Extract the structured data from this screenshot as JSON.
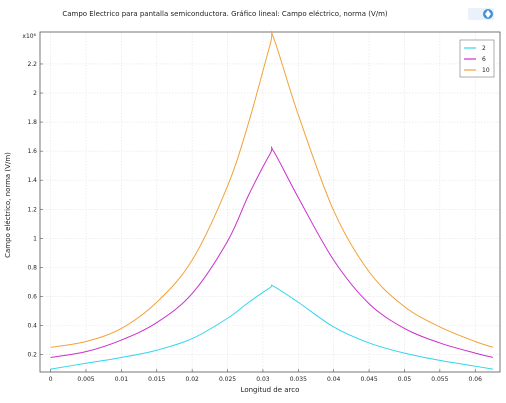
{
  "chart_data": {
    "type": "line",
    "title": "Campo Electrico para pantalla semiconductora. Gráfico lineal: Campo eléctrico, norma (V/m)",
    "xlabel": "Longitud de arco",
    "ylabel": "Campo eléctrico, norma (V/m)",
    "y_multiplier_label": "x10⁶",
    "xlim": [
      -0.0015,
      0.0635
    ],
    "ylim": [
      0.08,
      2.42
    ],
    "grid": true,
    "legend_position": "top-right",
    "x_ticks": [
      "0",
      "0.005",
      "0.01",
      "0.015",
      "0.02",
      "0.025",
      "0.03",
      "0.035",
      "0.04",
      "0.045",
      "0.05",
      "0.055",
      "0.06"
    ],
    "y_ticks": [
      "0.2",
      "0.4",
      "0.6",
      "0.8",
      "1",
      "1.2",
      "1.4",
      "1.6",
      "1.8",
      "2",
      "2.2"
    ],
    "x": [
      0,
      0.005,
      0.01,
      0.015,
      0.02,
      0.025,
      0.028,
      0.031,
      0.0315,
      0.035,
      0.04,
      0.045,
      0.05,
      0.055,
      0.06,
      0.0625
    ],
    "series": [
      {
        "name": "2",
        "color": "#33d6ee",
        "values": [
          0.1,
          0.14,
          0.18,
          0.23,
          0.31,
          0.45,
          0.56,
          0.66,
          0.67,
          0.56,
          0.39,
          0.28,
          0.21,
          0.16,
          0.12,
          0.1
        ]
      },
      {
        "name": "6",
        "color": "#cc2fcc",
        "values": [
          0.18,
          0.22,
          0.3,
          0.42,
          0.62,
          0.98,
          1.3,
          1.58,
          1.6,
          1.28,
          0.85,
          0.55,
          0.38,
          0.28,
          0.21,
          0.18
        ]
      },
      {
        "name": "10",
        "color": "#f2a23a",
        "values": [
          0.25,
          0.29,
          0.38,
          0.56,
          0.85,
          1.36,
          1.8,
          2.33,
          2.38,
          1.85,
          1.19,
          0.77,
          0.53,
          0.39,
          0.29,
          0.25
        ]
      }
    ]
  }
}
